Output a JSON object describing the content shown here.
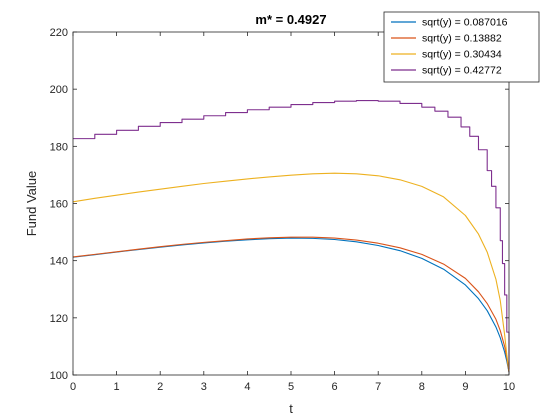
{
  "chart_data": {
    "type": "line",
    "title": "m* = 0.4927",
    "xlabel": "t",
    "ylabel": "Fund Value",
    "xlim": [
      0,
      10
    ],
    "ylim": [
      100,
      220
    ],
    "xticks": [
      0,
      1,
      2,
      3,
      4,
      5,
      6,
      7,
      8,
      9,
      10
    ],
    "yticks": [
      100,
      120,
      140,
      160,
      180,
      200,
      220
    ],
    "grid": false,
    "legend_position": "top-right",
    "series": [
      {
        "name": "sqrt(y) = 0.087016",
        "color": "#0072BD",
        "style": "smooth",
        "x": [
          0,
          0.5,
          1,
          1.5,
          2,
          2.5,
          3,
          3.5,
          4,
          4.5,
          5,
          5.5,
          6,
          6.5,
          7,
          7.5,
          8,
          8.5,
          9,
          9.3,
          9.5,
          9.7,
          9.8,
          9.9,
          9.95,
          10
        ],
        "y": [
          141.2,
          142.1,
          143.0,
          143.9,
          144.7,
          145.5,
          146.2,
          146.8,
          147.3,
          147.7,
          147.9,
          147.8,
          147.4,
          146.6,
          145.3,
          143.5,
          140.8,
          137.0,
          131.5,
          126.7,
          122.5,
          116.8,
          113.0,
          108.0,
          104.8,
          101.0
        ]
      },
      {
        "name": "sqrt(y) = 0.13882",
        "color": "#D95319",
        "style": "smooth",
        "x": [
          0,
          0.5,
          1,
          1.5,
          2,
          2.5,
          3,
          3.5,
          4,
          4.5,
          5,
          5.5,
          6,
          6.5,
          7,
          7.5,
          8,
          8.5,
          9,
          9.3,
          9.5,
          9.7,
          9.8,
          9.9,
          9.95,
          10
        ],
        "y": [
          141.3,
          142.2,
          143.1,
          144.0,
          144.9,
          145.7,
          146.4,
          147.0,
          147.6,
          148.0,
          148.2,
          148.2,
          147.9,
          147.2,
          146.1,
          144.5,
          142.2,
          138.8,
          133.8,
          129.1,
          125.0,
          119.5,
          115.5,
          110.0,
          106.0,
          101.0
        ]
      },
      {
        "name": "sqrt(y) = 0.30434",
        "color": "#EDB120",
        "style": "smooth",
        "x": [
          0,
          0.5,
          1,
          1.5,
          2,
          2.5,
          3,
          3.5,
          4,
          4.5,
          5,
          5.5,
          6,
          6.5,
          7,
          7.5,
          8,
          8.5,
          9,
          9.3,
          9.5,
          9.7,
          9.8,
          9.9,
          9.95,
          10
        ],
        "y": [
          160.6,
          161.8,
          162.9,
          164.0,
          165.0,
          166.0,
          167.0,
          167.8,
          168.6,
          169.3,
          169.9,
          170.4,
          170.6,
          170.4,
          169.7,
          168.3,
          166.0,
          162.3,
          155.8,
          149.3,
          143.0,
          133.5,
          126.0,
          114.0,
          107.0,
          101.5
        ]
      },
      {
        "name": "sqrt(y) = 0.42772",
        "color": "#7E2F8E",
        "style": "staircase",
        "x": [
          0,
          0.5,
          1,
          1.5,
          2,
          2.5,
          3,
          3.5,
          4,
          4.5,
          5,
          5.5,
          6,
          6.5,
          7,
          7.5,
          8,
          8.3,
          8.6,
          8.9,
          9.1,
          9.3,
          9.5,
          9.6,
          9.7,
          9.8,
          9.85,
          9.9,
          9.95,
          10
        ],
        "y": [
          182.7,
          184.2,
          185.6,
          187.0,
          188.3,
          189.5,
          190.7,
          191.8,
          192.8,
          193.7,
          194.6,
          195.3,
          195.8,
          196.0,
          195.8,
          195.0,
          193.7,
          192.3,
          190.2,
          186.8,
          183.5,
          178.8,
          171.5,
          166.0,
          158.5,
          147.0,
          139.0,
          128.0,
          115.0,
          102.0
        ]
      }
    ]
  }
}
